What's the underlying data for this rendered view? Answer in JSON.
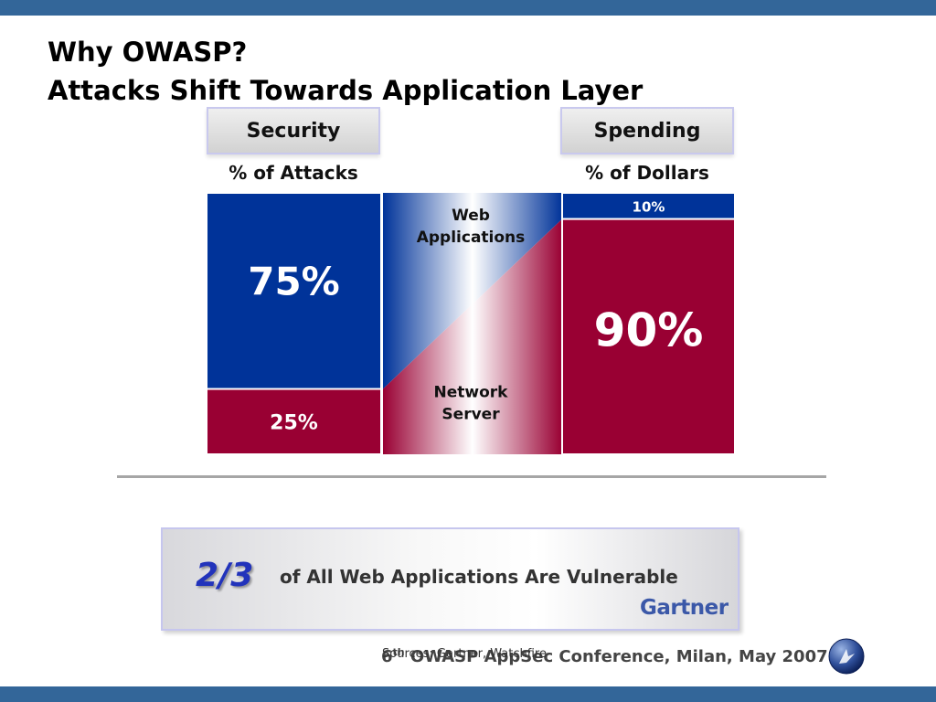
{
  "header": {
    "title_line1": "Why OWASP?",
    "title_line2": "Attacks Shift Towards Application Layer"
  },
  "chart_data": {
    "type": "bar",
    "stacked": true,
    "panels": [
      {
        "name": "Security",
        "subtitle": "% of Attacks",
        "segments": [
          {
            "category": "Web Applications",
            "value": 75,
            "label": "75%"
          },
          {
            "category": "Network Server",
            "value": 25,
            "label": "25%"
          }
        ]
      },
      {
        "name": "Spending",
        "subtitle": "% of Dollars",
        "segments": [
          {
            "category": "Web Applications",
            "value": 10,
            "label": "10%"
          },
          {
            "category": "Network Server",
            "value": 90,
            "label": "90%"
          }
        ]
      }
    ],
    "middle_labels": {
      "top": [
        "Web",
        "Applications"
      ],
      "bottom": [
        "Network",
        "Server"
      ]
    },
    "ylim": [
      0,
      100
    ],
    "grid": false,
    "legend": "none"
  },
  "callout": {
    "fraction": "2/3",
    "text": "of All Web Applications Are Vulnerable",
    "brand": "Gartner"
  },
  "footer": {
    "source": "Sources: Gartner, Watchfire",
    "ordinal": "6",
    "ordinal_suffix": "th",
    "conference": " OWASP AppSec Conference, Milan, May 2007"
  },
  "colors": {
    "web": "#003399",
    "network": "#990033",
    "band": "#336699"
  }
}
